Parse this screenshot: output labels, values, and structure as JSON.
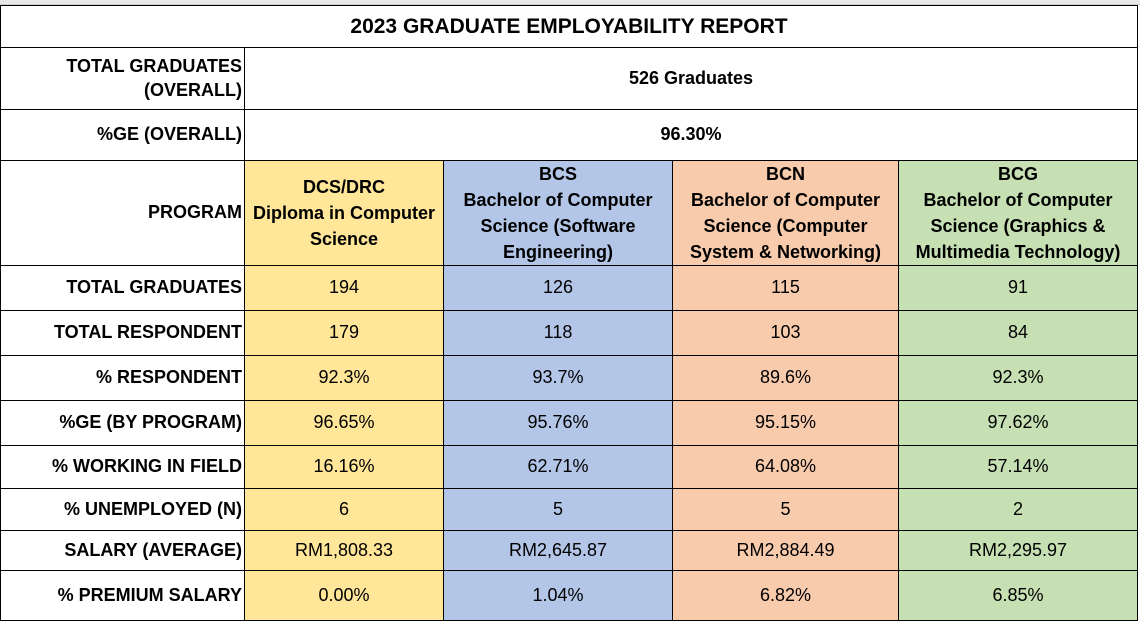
{
  "header": {
    "title": "2023 GRADUATE EMPLOYABILITY REPORT"
  },
  "summary": [
    {
      "label": "TOTAL GRADUATES (OVERALL)",
      "value": "526 Graduates"
    },
    {
      "label": "%GE (OVERALL)",
      "value": "96.30%"
    }
  ],
  "program_header": "PROGRAM",
  "programs": [
    {
      "code": "DCS/DRC",
      "name": "Diploma in Computer Science"
    },
    {
      "code": "BCS",
      "name": "Bachelor of Computer Science (Software Engineering)"
    },
    {
      "code": "BCN",
      "name": "Bachelor of Computer Science (Computer System & Networking)"
    },
    {
      "code": "BCG",
      "name": "Bachelor of Computer Science (Graphics & Multimedia Technology)"
    }
  ],
  "rows": [
    {
      "label": "TOTAL GRADUATES",
      "values": [
        "194",
        "126",
        "115",
        "91"
      ]
    },
    {
      "label": "TOTAL RESPONDENT",
      "values": [
        "179",
        "118",
        "103",
        "84"
      ]
    },
    {
      "label": "% RESPONDENT",
      "values": [
        "92.3%",
        "93.7%",
        "89.6%",
        "92.3%"
      ]
    },
    {
      "label": "%GE (BY PROGRAM)",
      "values": [
        "96.65%",
        "95.76%",
        "95.15%",
        "97.62%"
      ]
    },
    {
      "label": "% WORKING IN FIELD",
      "values": [
        "16.16%",
        "62.71%",
        "64.08%",
        "57.14%"
      ]
    },
    {
      "label": "% UNEMPLOYED (N)",
      "values": [
        "6",
        "5",
        "5",
        "2"
      ]
    },
    {
      "label": "SALARY (AVERAGE)",
      "values": [
        "RM1,808.33",
        "RM2,645.87",
        "RM2,884.49",
        "RM2,295.97"
      ]
    },
    {
      "label": "% PREMIUM SALARY",
      "values": [
        "0.00%",
        "1.04%",
        "6.82%",
        "6.85%"
      ]
    }
  ]
}
